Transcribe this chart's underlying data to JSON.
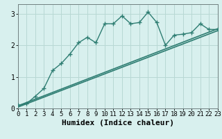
{
  "title": "",
  "xlabel": "Humidex (Indice chaleur)",
  "ylabel": "",
  "bg_color": "#d8f0ee",
  "grid_color": "#b8d8d4",
  "line_color": "#2e7d72",
  "xlim": [
    0,
    23
  ],
  "ylim": [
    0,
    3.3
  ],
  "xticks": [
    0,
    1,
    2,
    3,
    4,
    5,
    6,
    7,
    8,
    9,
    10,
    11,
    12,
    13,
    14,
    15,
    16,
    17,
    18,
    19,
    20,
    21,
    22,
    23
  ],
  "yticks": [
    0,
    1,
    2,
    3
  ],
  "humidex_x": [
    0,
    1,
    2,
    3,
    4,
    5,
    6,
    7,
    8,
    9,
    10,
    11,
    12,
    13,
    14,
    15,
    16,
    17,
    18,
    19,
    20,
    21,
    22,
    23
  ],
  "humidex_y": [
    0.1,
    0.15,
    0.38,
    0.63,
    1.2,
    1.42,
    1.72,
    2.08,
    2.25,
    2.08,
    2.68,
    2.68,
    2.93,
    2.68,
    2.72,
    3.05,
    2.72,
    2.0,
    2.32,
    2.35,
    2.4,
    2.68,
    2.5,
    2.5
  ],
  "line1_x": [
    0,
    23
  ],
  "line1_y": [
    0.08,
    2.52
  ],
  "line2_x": [
    0,
    23
  ],
  "line2_y": [
    0.04,
    2.46
  ],
  "marker": "P",
  "markersize": 2.8,
  "linewidth": 1.0,
  "line_linewidth": 1.2,
  "xlabel_fontsize": 8,
  "tick_fontsize": 6.5
}
